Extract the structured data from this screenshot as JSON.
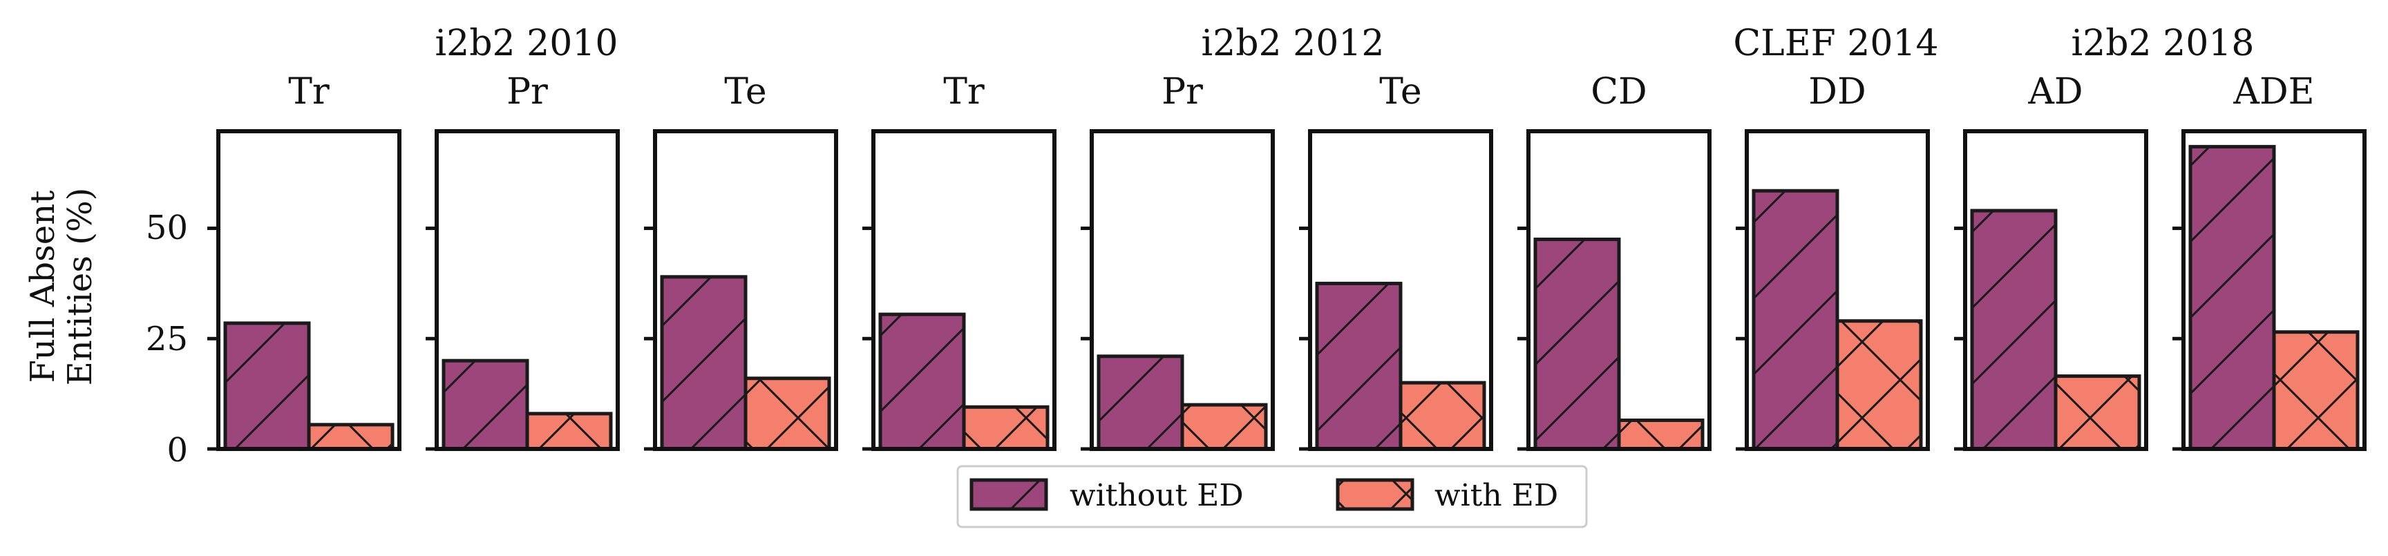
{
  "chart_data": {
    "type": "bar",
    "ylabel_lines": [
      "Full Absent",
      "Entities (%)"
    ],
    "ylim": [
      0,
      72
    ],
    "yticks": [
      "0",
      "25",
      "50"
    ],
    "ytick_values": [
      0,
      25,
      50
    ],
    "groups": [
      {
        "label": "i2b2 2010",
        "panels": [
          0,
          2
        ]
      },
      {
        "label": "i2b2 2012",
        "panels": [
          3,
          6
        ]
      },
      {
        "label": "CLEF 2014",
        "panels": [
          7,
          7
        ]
      },
      {
        "label": "i2b2 2018",
        "panels": [
          8,
          9
        ]
      }
    ],
    "categories": [
      "Tr",
      "Pr",
      "Te",
      "Tr",
      "Pr",
      "Te",
      "CD",
      "DD",
      "AD",
      "ADE"
    ],
    "series": [
      {
        "name": "without ED",
        "color": "#9c467c",
        "hatch": "/",
        "values": [
          28.5,
          20,
          39,
          30.5,
          21,
          37.5,
          47.5,
          58.5,
          54,
          68.5
        ]
      },
      {
        "name": "with ED",
        "color": "#f37f6c",
        "hatch": "x",
        "values": [
          5.5,
          8,
          16,
          9.5,
          10,
          15,
          6.5,
          29,
          16.5,
          26.5
        ]
      }
    ],
    "legend": {
      "position": "bottom-center",
      "labels": [
        "without ED",
        "with ED"
      ]
    }
  }
}
